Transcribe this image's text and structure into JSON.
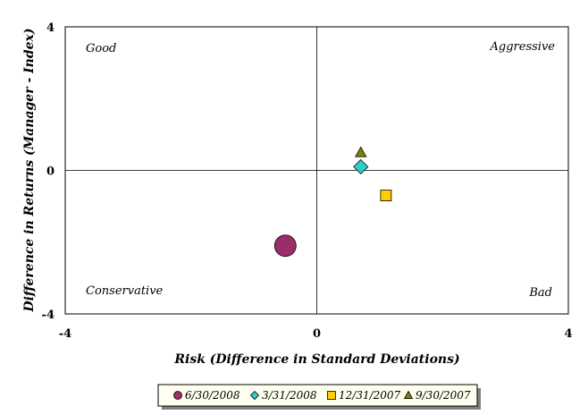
{
  "chart_data": {
    "type": "scatter",
    "xlabel": "Risk (Difference in Standard Deviations)",
    "ylabel": "Difference in Returns (Manager - Index)",
    "xlim": [
      -4,
      4
    ],
    "ylim": [
      -4,
      4
    ],
    "x_ticks": [
      "-4",
      "0",
      "4"
    ],
    "y_ticks": [
      "4",
      "0",
      "-4"
    ],
    "quadrant_labels": {
      "top_left": "Good",
      "top_right": "Aggressive",
      "bottom_left": "Conservative",
      "bottom_right": "Bad"
    },
    "legend_position": "bottom",
    "series": [
      {
        "name": "6/30/2008",
        "marker": "circle",
        "color": "#9b2d6b",
        "x": -0.5,
        "y": -2.1
      },
      {
        "name": "3/31/2008",
        "marker": "diamond",
        "color": "#33cccc",
        "x": 0.7,
        "y": 0.1
      },
      {
        "name": "12/31/2007",
        "marker": "square",
        "color": "#ffcc00",
        "x": 1.1,
        "y": -0.7
      },
      {
        "name": "9/30/2007",
        "marker": "triangle",
        "color": "#808000",
        "x": 0.7,
        "y": 0.5
      }
    ]
  }
}
